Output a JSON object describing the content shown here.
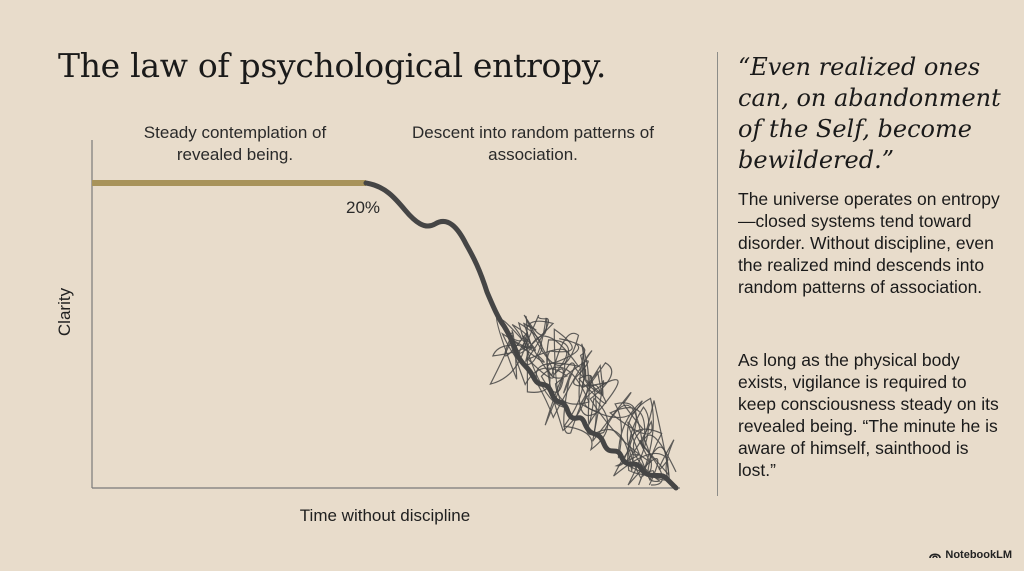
{
  "title": "The law of psychological entropy.",
  "chart": {
    "annotation_left": "Steady contemplation of revealed being.",
    "annotation_right": "Descent into random patterns of association.",
    "marker_label": "20%",
    "xlabel": "Time without discipline",
    "ylabel": "Clarity",
    "colors": {
      "steady": "#a8935a",
      "descent": "#454545",
      "axis": "#7a7a7a"
    }
  },
  "sidebar": {
    "quote": "“Even realized ones can, on abandonment of the Self, become bewildered.”",
    "paragraph1": "The universe operates on entropy—closed systems tend toward disorder. Without discipline, even the realized mind descends into random patterns of association.",
    "paragraph2": "As long as the physical body exists, vigilance is required to keep consciousness steady on its revealed being. “The minute he is aware of himself, sainthood is lost.”"
  },
  "brand": {
    "name": "NotebookLM",
    "icon": "notebooklm-logo-icon"
  }
}
